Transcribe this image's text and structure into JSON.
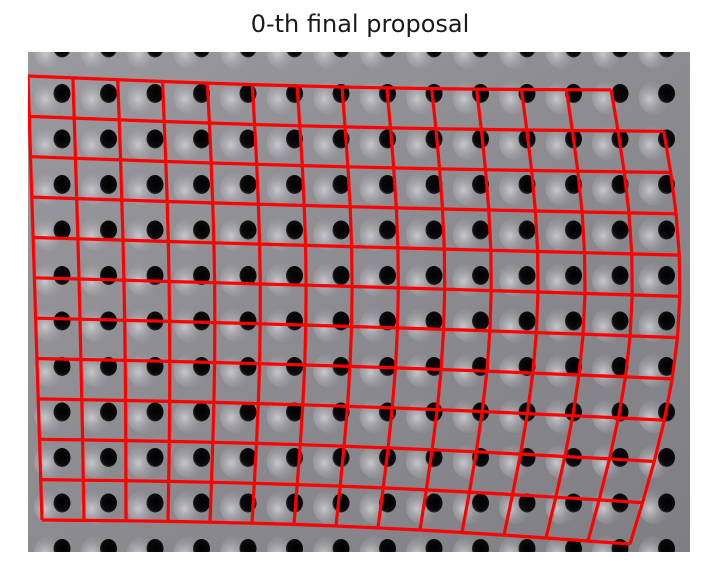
{
  "title": "0-th final proposal",
  "image": {
    "subject": "perforated grey metal plate with a regular grid of round holes",
    "background_color": "#8a8a8e",
    "hole_color": "#0d0d0f",
    "overlay": {
      "color": "#ff0000",
      "grid_rows": 11,
      "grid_cols": 14,
      "stroke_style": "solid red quadrilateral grid"
    }
  }
}
